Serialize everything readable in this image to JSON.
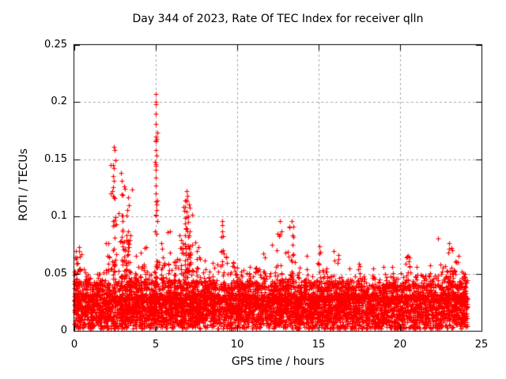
{
  "chart_data": {
    "type": "scatter",
    "title": "Day 344 of 2023, Rate Of TEC Index for receiver qlln",
    "xlabel": "GPS time / hours",
    "ylabel": "ROTI / TECUs",
    "xlim": [
      0,
      25
    ],
    "ylim": [
      0,
      0.25
    ],
    "xticks": [
      0,
      5,
      10,
      15,
      20,
      25
    ],
    "yticks": [
      0,
      0.05,
      0.1,
      0.15,
      0.2,
      0.25
    ],
    "xtick_labels": [
      "0",
      "5",
      "10",
      "15",
      "20",
      "25"
    ],
    "ytick_labels": [
      "0",
      "0.05",
      "0.1",
      "0.15",
      "0.2",
      "0.25"
    ],
    "grid": {
      "visible": true,
      "style": "dashed",
      "color": "#a8a8a8"
    },
    "legend": "none",
    "axis_color": "#000000",
    "background": "#ffffff",
    "series": [
      {
        "name": "ROTI",
        "marker": {
          "shape": "plus",
          "color": "#ff0000",
          "size": 7
        },
        "x_data_range": [
          0,
          24.12
        ],
        "model": {
          "seed": 7,
          "baseline": {
            "count": 6500,
            "x_min": 0,
            "x_max": 24.12,
            "core_band": [
              0.009,
              0.032
            ],
            "fringe_band": [
              0.002,
              0.009
            ],
            "upper_fuzz": [
              0.027,
              0.044
            ]
          },
          "envelope_by_hour": [
            0.06,
            0.052,
            0.068,
            0.068,
            0.058,
            0.062,
            0.062,
            0.068,
            0.06,
            0.058,
            0.052,
            0.056,
            0.052,
            0.056,
            0.05,
            0.052,
            0.048,
            0.05,
            0.048,
            0.05,
            0.052,
            0.05,
            0.052,
            0.056,
            0.05
          ],
          "clusters": [
            {
              "x": 0.06,
              "sd": 0.05,
              "n": 14,
              "vmax": 0.066,
              "fill": 1.6
            },
            {
              "x": 0.3,
              "sd": 0.1,
              "n": 10,
              "vmax": 0.07,
              "fill": 1.6
            },
            {
              "x": 0.9,
              "sd": 0.12,
              "n": 9,
              "vmax": 0.054,
              "fill": 1.6
            },
            {
              "x": 1.5,
              "sd": 0.12,
              "n": 8,
              "vmax": 0.05,
              "fill": 1.6
            },
            {
              "x": 2.0,
              "sd": 0.12,
              "n": 18,
              "vmax": 0.08,
              "fill": 1.6
            },
            {
              "x": 2.45,
              "sd": 0.09,
              "n": 32,
              "vmax": 0.15,
              "fill": 1.3
            },
            {
              "x": 3.0,
              "sd": 0.17,
              "n": 55,
              "vmax": 0.13,
              "fill": 1.3
            },
            {
              "x": 3.35,
              "sd": 0.08,
              "n": 18,
              "vmax": 0.112,
              "fill": 1.5
            },
            {
              "x": 3.8,
              "sd": 0.1,
              "n": 10,
              "vmax": 0.068,
              "fill": 1.6
            },
            {
              "x": 4.3,
              "sd": 0.12,
              "n": 14,
              "vmax": 0.076,
              "fill": 1.6
            },
            {
              "x": 5.0,
              "sd": 0.05,
              "n": 32,
              "vmax": 0.175,
              "fill": 1.3
            },
            {
              "x": 5.45,
              "sd": 0.1,
              "n": 16,
              "vmax": 0.095,
              "fill": 1.5
            },
            {
              "x": 5.85,
              "sd": 0.1,
              "n": 14,
              "vmax": 0.088,
              "fill": 1.6
            },
            {
              "x": 6.2,
              "sd": 0.1,
              "n": 10,
              "vmax": 0.07,
              "fill": 1.6
            },
            {
              "x": 6.55,
              "sd": 0.1,
              "n": 16,
              "vmax": 0.088,
              "fill": 1.6
            },
            {
              "x": 6.95,
              "sd": 0.13,
              "n": 65,
              "vmax": 0.118,
              "fill": 1.25
            },
            {
              "x": 7.45,
              "sd": 0.1,
              "n": 14,
              "vmax": 0.078,
              "fill": 1.6
            },
            {
              "x": 7.9,
              "sd": 0.1,
              "n": 10,
              "vmax": 0.065,
              "fill": 1.6
            },
            {
              "x": 8.3,
              "sd": 0.12,
              "n": 12,
              "vmax": 0.066,
              "fill": 1.6
            },
            {
              "x": 9.15,
              "sd": 0.12,
              "n": 26,
              "vmax": 0.094,
              "fill": 1.5
            },
            {
              "x": 9.8,
              "sd": 0.1,
              "n": 8,
              "vmax": 0.06,
              "fill": 1.6
            },
            {
              "x": 10.3,
              "sd": 0.1,
              "n": 8,
              "vmax": 0.058,
              "fill": 1.6
            },
            {
              "x": 10.7,
              "sd": 0.12,
              "n": 10,
              "vmax": 0.064,
              "fill": 1.6
            },
            {
              "x": 11.2,
              "sd": 0.1,
              "n": 8,
              "vmax": 0.06,
              "fill": 1.6
            },
            {
              "x": 11.7,
              "sd": 0.12,
              "n": 12,
              "vmax": 0.068,
              "fill": 1.6
            },
            {
              "x": 12.6,
              "sd": 0.15,
              "n": 20,
              "vmax": 0.092,
              "fill": 1.5
            },
            {
              "x": 13.37,
              "sd": 0.1,
              "n": 22,
              "vmax": 0.094,
              "fill": 1.5
            },
            {
              "x": 14.25,
              "sd": 0.1,
              "n": 8,
              "vmax": 0.072,
              "fill": 1.6
            },
            {
              "x": 15.05,
              "sd": 0.1,
              "n": 12,
              "vmax": 0.074,
              "fill": 1.6
            },
            {
              "x": 15.5,
              "sd": 0.1,
              "n": 8,
              "vmax": 0.06,
              "fill": 1.6
            },
            {
              "x": 16.1,
              "sd": 0.1,
              "n": 10,
              "vmax": 0.07,
              "fill": 1.6
            },
            {
              "x": 16.8,
              "sd": 0.12,
              "n": 8,
              "vmax": 0.058,
              "fill": 1.6
            },
            {
              "x": 17.5,
              "sd": 0.12,
              "n": 10,
              "vmax": 0.062,
              "fill": 1.6
            },
            {
              "x": 18.3,
              "sd": 0.1,
              "n": 6,
              "vmax": 0.056,
              "fill": 1.6
            },
            {
              "x": 19.0,
              "sd": 0.1,
              "n": 6,
              "vmax": 0.058,
              "fill": 1.6
            },
            {
              "x": 19.6,
              "sd": 0.1,
              "n": 10,
              "vmax": 0.064,
              "fill": 1.6
            },
            {
              "x": 20.4,
              "sd": 0.15,
              "n": 18,
              "vmax": 0.073,
              "fill": 1.6
            },
            {
              "x": 21.0,
              "sd": 0.1,
              "n": 8,
              "vmax": 0.06,
              "fill": 1.6
            },
            {
              "x": 21.8,
              "sd": 0.1,
              "n": 8,
              "vmax": 0.06,
              "fill": 1.6
            },
            {
              "x": 22.5,
              "sd": 0.1,
              "n": 10,
              "vmax": 0.064,
              "fill": 1.6
            },
            {
              "x": 23.0,
              "sd": 0.12,
              "n": 16,
              "vmax": 0.075,
              "fill": 1.6
            },
            {
              "x": 23.6,
              "sd": 0.12,
              "n": 12,
              "vmax": 0.066,
              "fill": 1.6
            },
            {
              "x": 24.0,
              "sd": 0.08,
              "n": 30,
              "vmax": 0.048,
              "fill": 1.2,
              "vmin": 0.012
            }
          ],
          "peak_points": [
            [
              0.08,
              0.07
            ],
            [
              0.12,
              0.063
            ],
            [
              0.3,
              0.073
            ],
            [
              0.35,
              0.053
            ],
            [
              2.42,
              0.161
            ],
            [
              2.47,
              0.158
            ],
            [
              2.5,
              0.149
            ],
            [
              2.88,
              0.138
            ],
            [
              2.93,
              0.131
            ],
            [
              3.3,
              0.117
            ],
            [
              3.36,
              0.11
            ],
            [
              5.0,
              0.207
            ],
            [
              5.0,
              0.2
            ],
            [
              5.02,
              0.198
            ],
            [
              5.0,
              0.19
            ],
            [
              5.0,
              0.181
            ],
            [
              5.02,
              0.158
            ],
            [
              4.98,
              0.146
            ],
            [
              5.0,
              0.144
            ],
            [
              5.0,
              0.134
            ],
            [
              5.01,
              0.12
            ],
            [
              5.0,
              0.113
            ],
            [
              5.0,
              0.101
            ],
            [
              6.9,
              0.122
            ],
            [
              6.88,
              0.113
            ],
            [
              9.1,
              0.096
            ],
            [
              12.6,
              0.096
            ],
            [
              13.37,
              0.096
            ],
            [
              15.05,
              0.074
            ],
            [
              22.33,
              0.081
            ],
            [
              23.0,
              0.077
            ]
          ]
        }
      }
    ]
  }
}
